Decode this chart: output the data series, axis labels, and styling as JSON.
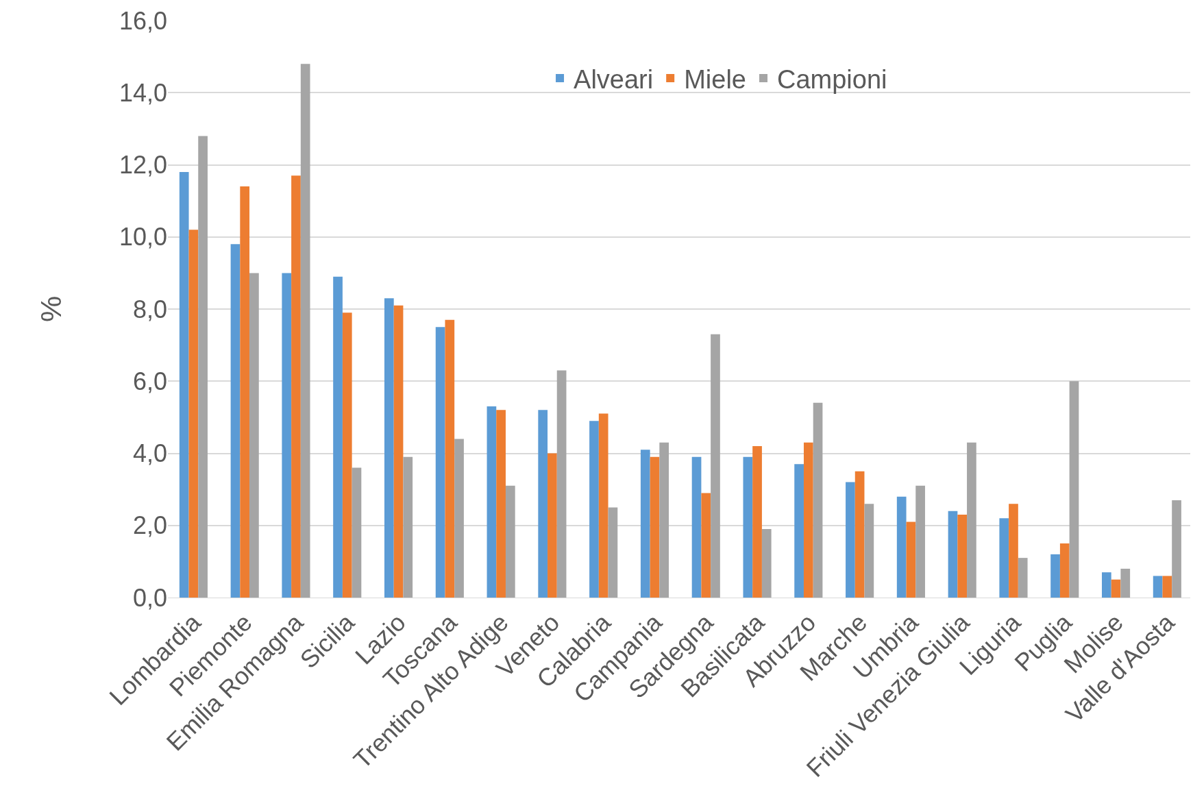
{
  "chart_data": {
    "type": "bar",
    "ylabel": "%",
    "categories": [
      "Lombardia",
      "Piemonte",
      "Emilia Romagna",
      "Sicilia",
      "Lazio",
      "Toscana",
      "Trentino Alto Adige",
      "Veneto",
      "Calabria",
      "Campania",
      "Sardegna",
      "Basilicata",
      "Abruzzo",
      "Marche",
      "Umbria",
      "Friuli Venezia Giulia",
      "Liguria",
      "Puglia",
      "Molise",
      "Valle d'Aosta"
    ],
    "series": [
      {
        "name": "Alveari",
        "color": "#5b9bd5",
        "values": [
          11.8,
          9.8,
          9.0,
          8.9,
          8.3,
          7.5,
          5.3,
          5.2,
          4.9,
          4.1,
          3.9,
          3.9,
          3.7,
          3.2,
          2.8,
          2.4,
          2.2,
          1.2,
          0.7,
          0.6
        ]
      },
      {
        "name": "Miele",
        "color": "#ed7d31",
        "values": [
          10.2,
          11.4,
          11.7,
          7.9,
          8.1,
          7.7,
          5.2,
          4.0,
          5.1,
          3.9,
          2.9,
          4.2,
          4.3,
          3.5,
          2.1,
          2.3,
          2.6,
          1.5,
          0.5,
          0.6
        ]
      },
      {
        "name": "Campioni",
        "color": "#a5a5a5",
        "values": [
          12.8,
          9.0,
          14.8,
          3.6,
          3.9,
          4.4,
          3.1,
          6.3,
          2.5,
          4.3,
          7.3,
          1.9,
          5.4,
          2.6,
          3.1,
          4.3,
          1.1,
          6.0,
          0.8,
          2.7
        ]
      }
    ],
    "ylim": [
      0,
      16
    ],
    "yticks": [
      {
        "value": 0,
        "label": "0,0"
      },
      {
        "value": 2,
        "label": "2,0"
      },
      {
        "value": 4,
        "label": "4,0"
      },
      {
        "value": 6,
        "label": "6,0"
      },
      {
        "value": 8,
        "label": "8,0"
      },
      {
        "value": 10,
        "label": "10,0"
      },
      {
        "value": 12,
        "label": "12,0"
      },
      {
        "value": 14,
        "label": "14,0"
      },
      {
        "value": 16,
        "label": "16,0"
      }
    ],
    "grid": "y",
    "legend": "top"
  }
}
